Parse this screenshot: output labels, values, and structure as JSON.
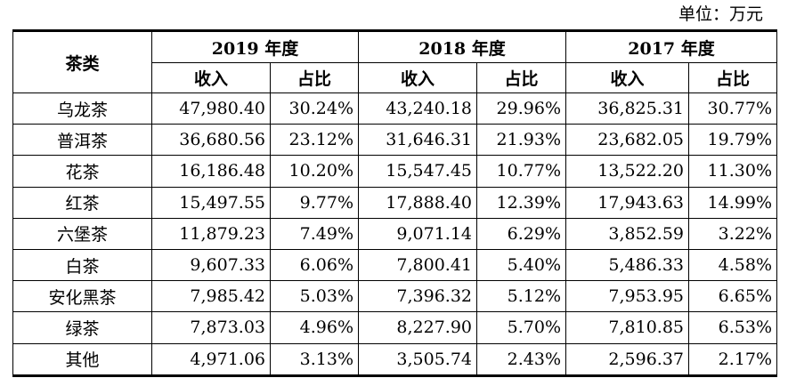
{
  "unit_label": "单位：万元",
  "header": {
    "category": "茶类",
    "years": [
      "2019 年度",
      "2018 年度",
      "2017 年度"
    ],
    "revenue": "收入",
    "share": "占比"
  },
  "rows": [
    {
      "name": "乌龙茶",
      "values": [
        "47,980.40",
        "30.24%",
        "43,240.18",
        "29.96%",
        "36,825.31",
        "30.77%"
      ]
    },
    {
      "name": "普洱茶",
      "values": [
        "36,680.56",
        "23.12%",
        "31,646.31",
        "21.93%",
        "23,682.05",
        "19.79%"
      ]
    },
    {
      "name": "花茶",
      "values": [
        "16,186.48",
        "10.20%",
        "15,547.45",
        "10.77%",
        "13,522.20",
        "11.30%"
      ]
    },
    {
      "name": "红茶",
      "values": [
        "15,497.55",
        "9.77%",
        "17,888.40",
        "12.39%",
        "17,943.63",
        "14.99%"
      ]
    },
    {
      "name": "六堡茶",
      "values": [
        "11,879.23",
        "7.49%",
        "9,071.14",
        "6.29%",
        "3,852.59",
        "3.22%"
      ]
    },
    {
      "name": "白茶",
      "values": [
        "9,607.33",
        "6.06%",
        "7,800.41",
        "5.40%",
        "5,486.33",
        "4.58%"
      ]
    },
    {
      "name": "安化黑茶",
      "values": [
        "7,985.42",
        "5.03%",
        "7,396.32",
        "5.12%",
        "7,953.95",
        "6.65%"
      ]
    },
    {
      "name": "绿茶",
      "values": [
        "7,873.03",
        "4.96%",
        "8,227.90",
        "5.70%",
        "7,810.85",
        "6.53%"
      ]
    },
    {
      "name": "其他",
      "values": [
        "4,971.06",
        "3.13%",
        "3,505.74",
        "2.43%",
        "2,596.37",
        "2.17%"
      ]
    }
  ]
}
